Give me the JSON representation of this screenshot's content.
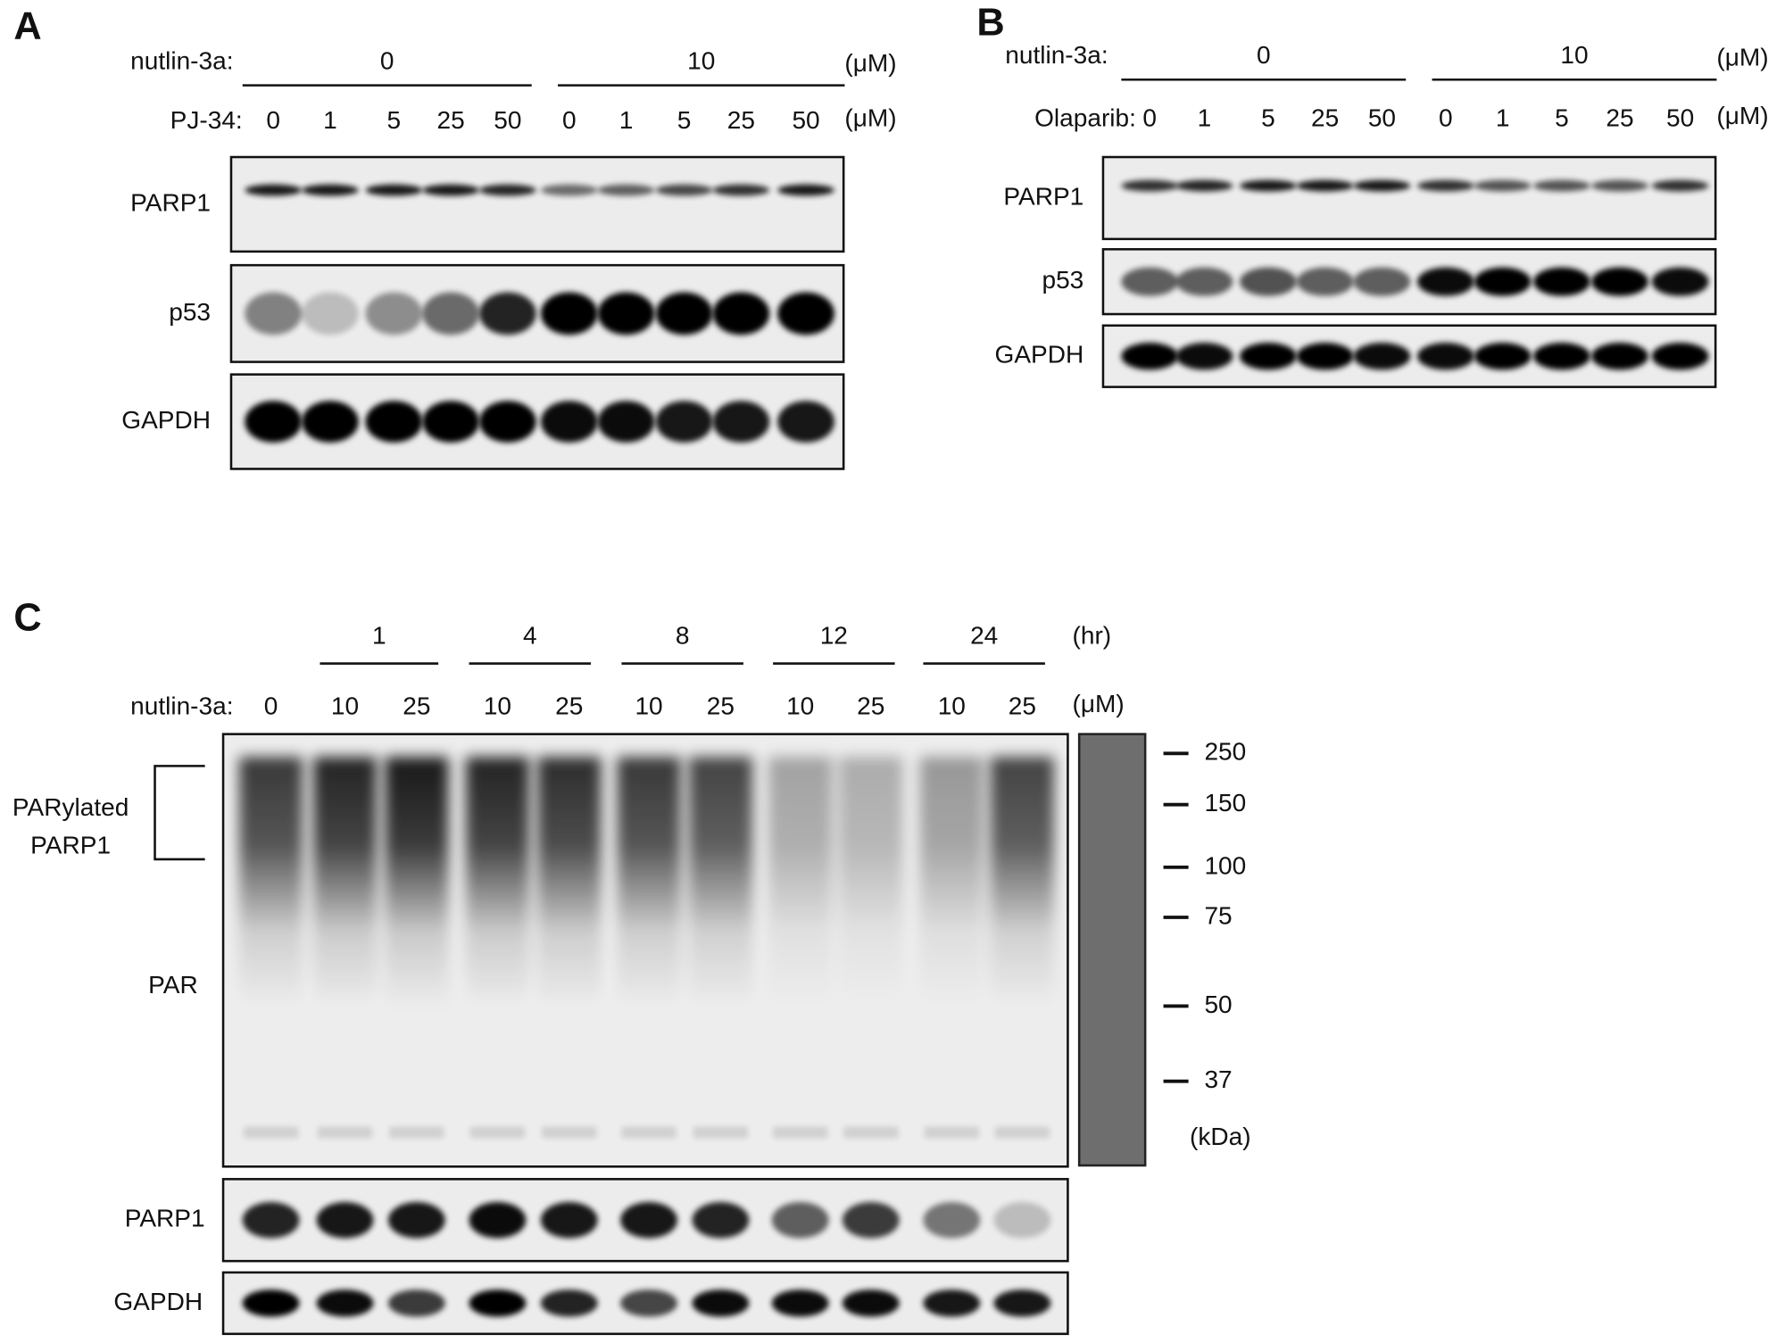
{
  "panels": [
    {
      "letter": "A",
      "group_row": {
        "label": "nutlin-3a:",
        "groups": [
          "0",
          "10"
        ],
        "unit": "(μM)"
      },
      "lane_row": {
        "label": "PJ-34:",
        "lanes": [
          "0",
          "1",
          "5",
          "25",
          "50",
          "0",
          "1",
          "5",
          "25",
          "50"
        ],
        "unit": "(μM)"
      },
      "blots": [
        "PARP1",
        "p53",
        "GAPDH"
      ]
    },
    {
      "letter": "B",
      "group_row": {
        "label": "nutlin-3a:",
        "groups": [
          "0",
          "10"
        ],
        "unit": "(μM)"
      },
      "lane_row": {
        "label": "Olaparib:",
        "lanes": [
          "0",
          "1",
          "5",
          "25",
          "50",
          "0",
          "1",
          "5",
          "25",
          "50"
        ],
        "unit": "(μM)"
      },
      "blots": [
        "PARP1",
        "p53",
        "GAPDH"
      ]
    },
    {
      "letter": "C",
      "group_row": {
        "groups": [
          "1",
          "4",
          "8",
          "12",
          "24"
        ],
        "unit": "(hr)"
      },
      "lane_row": {
        "label": "nutlin-3a:",
        "lanes": [
          "0",
          "10",
          "25",
          "10",
          "25",
          "10",
          "25",
          "10",
          "25",
          "10",
          "25"
        ],
        "unit": "(μM)"
      },
      "blots": [
        "PAR",
        "PARP1",
        "GAPDH"
      ],
      "bracket_label": [
        "PARylated",
        "PARP1"
      ],
      "markers": [
        "250",
        "150",
        "100",
        "75",
        "50",
        "37"
      ],
      "marker_unit": "(kDa)"
    }
  ]
}
